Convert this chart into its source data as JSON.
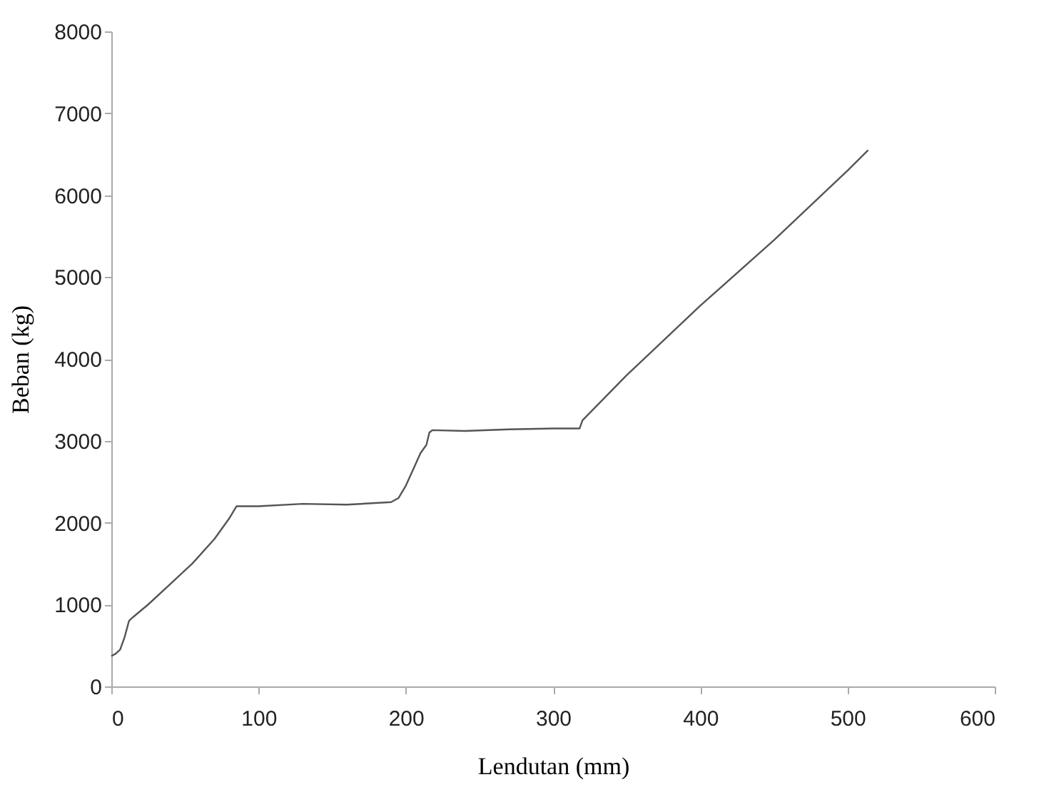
{
  "chart_data": {
    "type": "line",
    "xlabel": "Lendutan (mm)",
    "ylabel": "Beban (kg)",
    "series": [
      {
        "color": "#555555",
        "x": [
          0,
          3,
          6,
          9,
          12,
          15,
          25,
          40,
          55,
          70,
          80,
          85,
          100,
          130,
          160,
          190,
          195,
          200,
          205,
          210,
          214,
          216,
          218,
          240,
          270,
          300,
          318,
          320,
          350,
          400,
          450,
          500,
          514
        ],
        "values": [
          370,
          400,
          450,
          600,
          800,
          850,
          1000,
          1250,
          1500,
          1800,
          2050,
          2200,
          2200,
          2230,
          2220,
          2250,
          2300,
          2450,
          2650,
          2850,
          2950,
          3100,
          3130,
          3120,
          3140,
          3150,
          3150,
          3250,
          3800,
          4650,
          5450,
          6300,
          6550
        ]
      }
    ],
    "xlim": [
      0,
      600
    ],
    "xticks": [
      0,
      100,
      200,
      300,
      400,
      500,
      600
    ],
    "ylim": [
      0,
      8000
    ],
    "yticks": [
      0,
      1000,
      2000,
      3000,
      4000,
      5000,
      6000,
      7000,
      8000
    ],
    "grid": false,
    "legend": false
  }
}
